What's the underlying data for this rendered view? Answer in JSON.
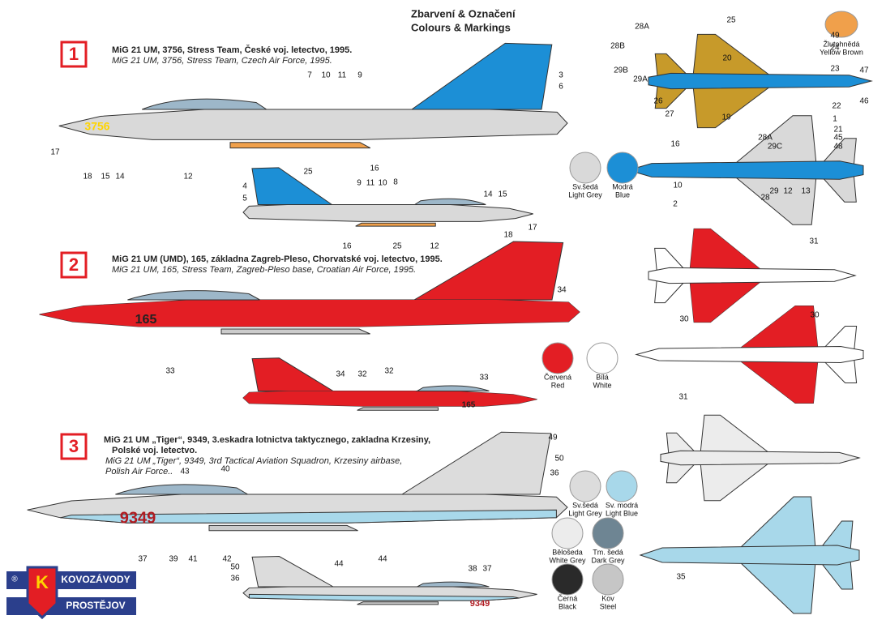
{
  "header": {
    "title_cz": "Zbarvení & Označení",
    "title_en": "Colours & Markings"
  },
  "schemes": [
    {
      "number": "1",
      "title": [
        "MiG 21 UM, 3756, Stress Team,  České voj. letectvo, 1995."
      ],
      "subtitle": [
        "MiG 21 UM, 3756, Stress Team,  Czech Air Force, 1995."
      ],
      "swatches": [
        {
          "cz": "Sv.šedá",
          "en": "Light Grey",
          "color": "#d9d9d9"
        },
        {
          "cz": "Modrá",
          "en": "Blue",
          "color": "#1c8fd6"
        },
        {
          "cz": "Žlutohnědá",
          "en": "Yellow Brown",
          "color": "#f0a04b"
        }
      ],
      "markings": [
        "3756"
      ],
      "callouts": [
        "7",
        "10",
        "11",
        "9",
        "3",
        "6",
        "17",
        "18",
        "15",
        "14",
        "12",
        "25",
        "16",
        "9",
        "11",
        "10",
        "8",
        "4",
        "5",
        "14",
        "15",
        "17",
        "18",
        "16",
        "25",
        "12",
        "25",
        "28A",
        "28B",
        "29B",
        "29A",
        "49",
        "24",
        "20",
        "23",
        "47",
        "26",
        "27",
        "46",
        "22",
        "19",
        "1",
        "21",
        "28A",
        "29C",
        "45",
        "48",
        "16",
        "10",
        "29",
        "12",
        "13",
        "28",
        "2"
      ]
    },
    {
      "number": "2",
      "title": [
        "MiG 21 UM (UMD), 165, základna Zagreb-Pleso, Chorvatské voj. letectvo, 1995."
      ],
      "subtitle": [
        "MiG 21 UM, 165, Stress Team, Zagreb-Pleso base, Croatian Air Force, 1995."
      ],
      "swatches": [
        {
          "cz": "Červená",
          "en": "Red",
          "color": "#e31e24"
        },
        {
          "cz": "Bílá",
          "en": "White",
          "color": "#ffffff"
        }
      ],
      "markings": [
        "165",
        "165"
      ],
      "callouts": [
        "34",
        "33",
        "32",
        "34",
        "32",
        "33",
        "31",
        "30",
        "30",
        "31"
      ]
    },
    {
      "number": "3",
      "title": [
        "MiG 21 UM „Tiger“, 9349, 3.eskadra lotnictva taktycznego, zakladna Krzesiny,",
        "Polské voj. letectvo."
      ],
      "subtitle": [
        "MiG 21 UM „Tiger“, 9349, 3rd Tactical Aviation Squadron, Krzesiny airbase,",
        "Polish Air Force.."
      ],
      "swatches": [
        {
          "cz": "Sv.šedá",
          "en": "Light Grey",
          "color": "#dcdcdc"
        },
        {
          "cz": "Sv. modrá",
          "en": "Light Blue",
          "color": "#a8d8ea"
        },
        {
          "cz": "Bělošeda",
          "en": "White Grey",
          "color": "#ececec"
        },
        {
          "cz": "Tm. šedá",
          "en": "Dark Grey",
          "color": "#6e8593"
        },
        {
          "cz": "Černá",
          "en": "Black",
          "color": "#2a2a2a"
        },
        {
          "cz": "Kov",
          "en": "Steel",
          "color": "#c6c6c6"
        }
      ],
      "markings": [
        "9349",
        "9349"
      ],
      "callouts": [
        "49",
        "50",
        "36",
        "43",
        "40",
        "37",
        "39",
        "41",
        "42",
        "44",
        "50",
        "36",
        "44",
        "38",
        "37",
        "35"
      ]
    }
  ],
  "logo": {
    "mark": "®",
    "letter": "K",
    "top": "KOVOZÁVODY",
    "bottom": "PROSTĚJOV"
  }
}
